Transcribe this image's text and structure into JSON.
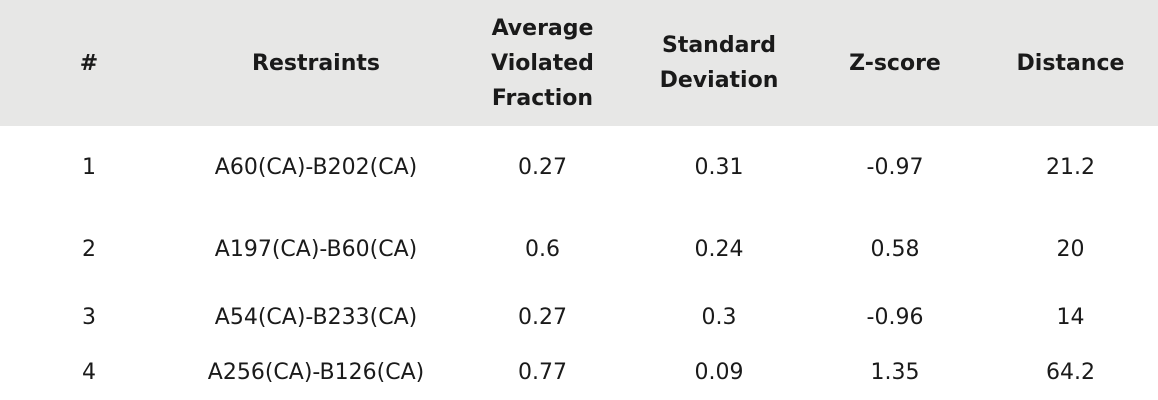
{
  "headers": {
    "num": "#",
    "restraints": "Restraints",
    "avg_violated_fraction": "Average\nViolated\nFraction",
    "std_dev": "Standard\nDeviation",
    "zscore": "Z-score",
    "distance": "Distance"
  },
  "rows": [
    {
      "num": "1",
      "restraint": "A60(CA)-B202(CA)",
      "avg": "0.27",
      "std": "0.31",
      "z": "-0.97",
      "dist": "21.2"
    },
    {
      "num": "2",
      "restraint": "A197(CA)-B60(CA)",
      "avg": "0.6",
      "std": "0.24",
      "z": "0.58",
      "dist": "20"
    },
    {
      "num": "3",
      "restraint": "A54(CA)-B233(CA)",
      "avg": "0.27",
      "std": "0.3",
      "z": "-0.96",
      "dist": "14"
    },
    {
      "num": "4",
      "restraint": "A256(CA)-B126(CA)",
      "avg": "0.77",
      "std": "0.09",
      "z": "1.35",
      "dist": "64.2"
    }
  ]
}
